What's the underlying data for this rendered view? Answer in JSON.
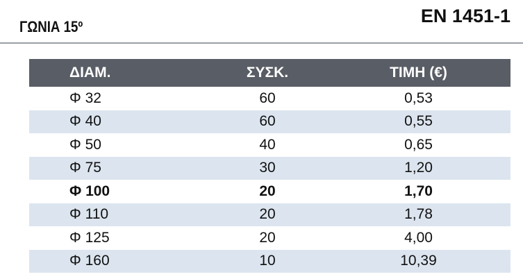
{
  "header": {
    "title": "ΓΩΝΙΑ 15º",
    "standard": "EN 1451-1"
  },
  "table": {
    "columns": [
      "ΔΙΑΜ.",
      "ΣΥΣΚ.",
      "ΤΙΜΗ (€)"
    ],
    "rows": [
      [
        "Φ 32",
        "60",
        "0,53"
      ],
      [
        "Φ 40",
        "60",
        "0,55"
      ],
      [
        "Φ 50",
        "40",
        "0,65"
      ],
      [
        "Φ 75",
        "30",
        "1,20"
      ],
      [
        "Φ 100",
        "20",
        "1,70"
      ],
      [
        "Φ 110",
        "20",
        "1,78"
      ],
      [
        "Φ 125",
        "20",
        "4,00"
      ],
      [
        "Φ 160",
        "10",
        "10,39"
      ]
    ]
  }
}
